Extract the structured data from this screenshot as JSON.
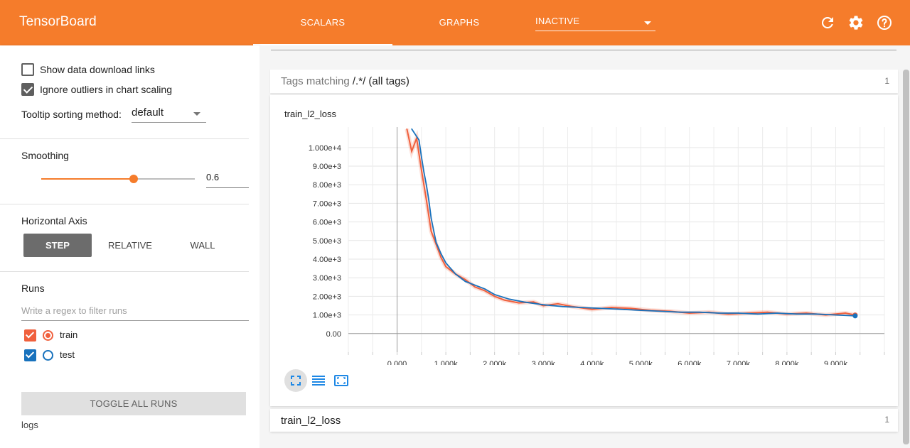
{
  "app": {
    "title": "TensorBoard"
  },
  "nav": {
    "tabs": [
      {
        "label": "SCALARS",
        "active": true
      },
      {
        "label": "GRAPHS",
        "active": false
      }
    ],
    "inactive_select": "INACTIVE",
    "icons": [
      "refresh-icon",
      "settings-icon",
      "help-icon"
    ]
  },
  "sidebar": {
    "show_download_links": {
      "label": "Show data download links",
      "checked": false
    },
    "ignore_outliers": {
      "label": "Ignore outliers in chart scaling",
      "checked": true
    },
    "tooltip_sorting": {
      "label": "Tooltip sorting method:",
      "value": "default"
    },
    "smoothing": {
      "title": "Smoothing",
      "value": "0.6",
      "fraction": 0.6
    },
    "horizontal_axis": {
      "title": "Horizontal Axis",
      "options": [
        {
          "label": "STEP",
          "active": true
        },
        {
          "label": "RELATIVE",
          "active": false
        },
        {
          "label": "WALL",
          "active": false
        }
      ]
    },
    "runs": {
      "title": "Runs",
      "filter_placeholder": "Write a regex to filter runs",
      "items": [
        {
          "name": "train",
          "checked": true,
          "color": "#f0603d",
          "selected": true
        },
        {
          "name": "test",
          "checked": true,
          "color": "#1872bd",
          "selected": false
        }
      ],
      "toggle_label": "TOGGLE ALL RUNS",
      "logdir": "logs"
    }
  },
  "main": {
    "tags_header": {
      "prefix": "Tags matching ",
      "regex": "/.*/",
      "suffix": " (all tags)",
      "count": "1"
    },
    "chart_card": {
      "title": "train_l2_loss"
    },
    "bottom_card": {
      "title": "train_l2_loss",
      "count": "1"
    }
  },
  "colors": {
    "accent": "#f57c2b",
    "train": "#f0603d",
    "test": "#1872bd"
  },
  "chart_data": {
    "type": "line",
    "title": "train_l2_loss",
    "xlabel": "",
    "ylabel": "",
    "x_ticks": [
      "0.000",
      "1.000k",
      "2.000k",
      "3.000k",
      "4.000k",
      "5.000k",
      "6.000k",
      "7.000k",
      "8.000k",
      "9.000k"
    ],
    "x_tick_values": [
      0,
      1000,
      2000,
      3000,
      4000,
      5000,
      6000,
      7000,
      8000,
      9000
    ],
    "y_ticks": [
      "0.00",
      "1.00e+3",
      "2.00e+3",
      "3.00e+3",
      "4.00e+3",
      "5.00e+3",
      "6.00e+3",
      "7.00e+3",
      "8.00e+3",
      "9.00e+3",
      "1.000e+4"
    ],
    "y_tick_values": [
      0,
      1000,
      2000,
      3000,
      4000,
      5000,
      6000,
      7000,
      8000,
      9000,
      10000
    ],
    "xlim": [
      -1000,
      10000
    ],
    "ylim": [
      -1000,
      11100
    ],
    "grid": true,
    "series": [
      {
        "name": "train",
        "x": [
          200,
          300,
          400,
          500,
          600,
          700,
          800,
          900,
          1000,
          1200,
          1400,
          1600,
          1800,
          2000,
          2200,
          2500,
          2800,
          3000,
          3300,
          3600,
          4000,
          4400,
          4800,
          5200,
          5600,
          6000,
          6400,
          6800,
          7200,
          7600,
          8000,
          8400,
          8800,
          9200,
          9400
        ],
        "y": [
          11000,
          9800,
          10500,
          8800,
          7200,
          5500,
          4800,
          4100,
          3600,
          3200,
          2900,
          2500,
          2300,
          2000,
          1800,
          1650,
          1700,
          1500,
          1600,
          1450,
          1300,
          1400,
          1350,
          1250,
          1200,
          1100,
          1150,
          1050,
          1100,
          1150,
          1050,
          1100,
          1000,
          1100,
          1000
        ]
      },
      {
        "name": "test",
        "x": [
          300,
          450,
          500,
          550,
          600,
          650,
          700,
          800,
          900,
          1000,
          1200,
          1400,
          1600,
          1800,
          2000,
          2300,
          2600,
          3000,
          3400,
          3800,
          4200,
          4600,
          5000,
          5400,
          5800,
          6200,
          6600,
          7000,
          7400,
          7800,
          8200,
          8600,
          9000,
          9400
        ],
        "y": [
          11000,
          10400,
          9500,
          8700,
          8000,
          7200,
          6200,
          4900,
          4300,
          3800,
          3200,
          2800,
          2600,
          2400,
          2100,
          1850,
          1700,
          1550,
          1450,
          1400,
          1350,
          1300,
          1250,
          1200,
          1150,
          1150,
          1100,
          1100,
          1050,
          1100,
          1050,
          1050,
          1000,
          950
        ]
      }
    ]
  }
}
